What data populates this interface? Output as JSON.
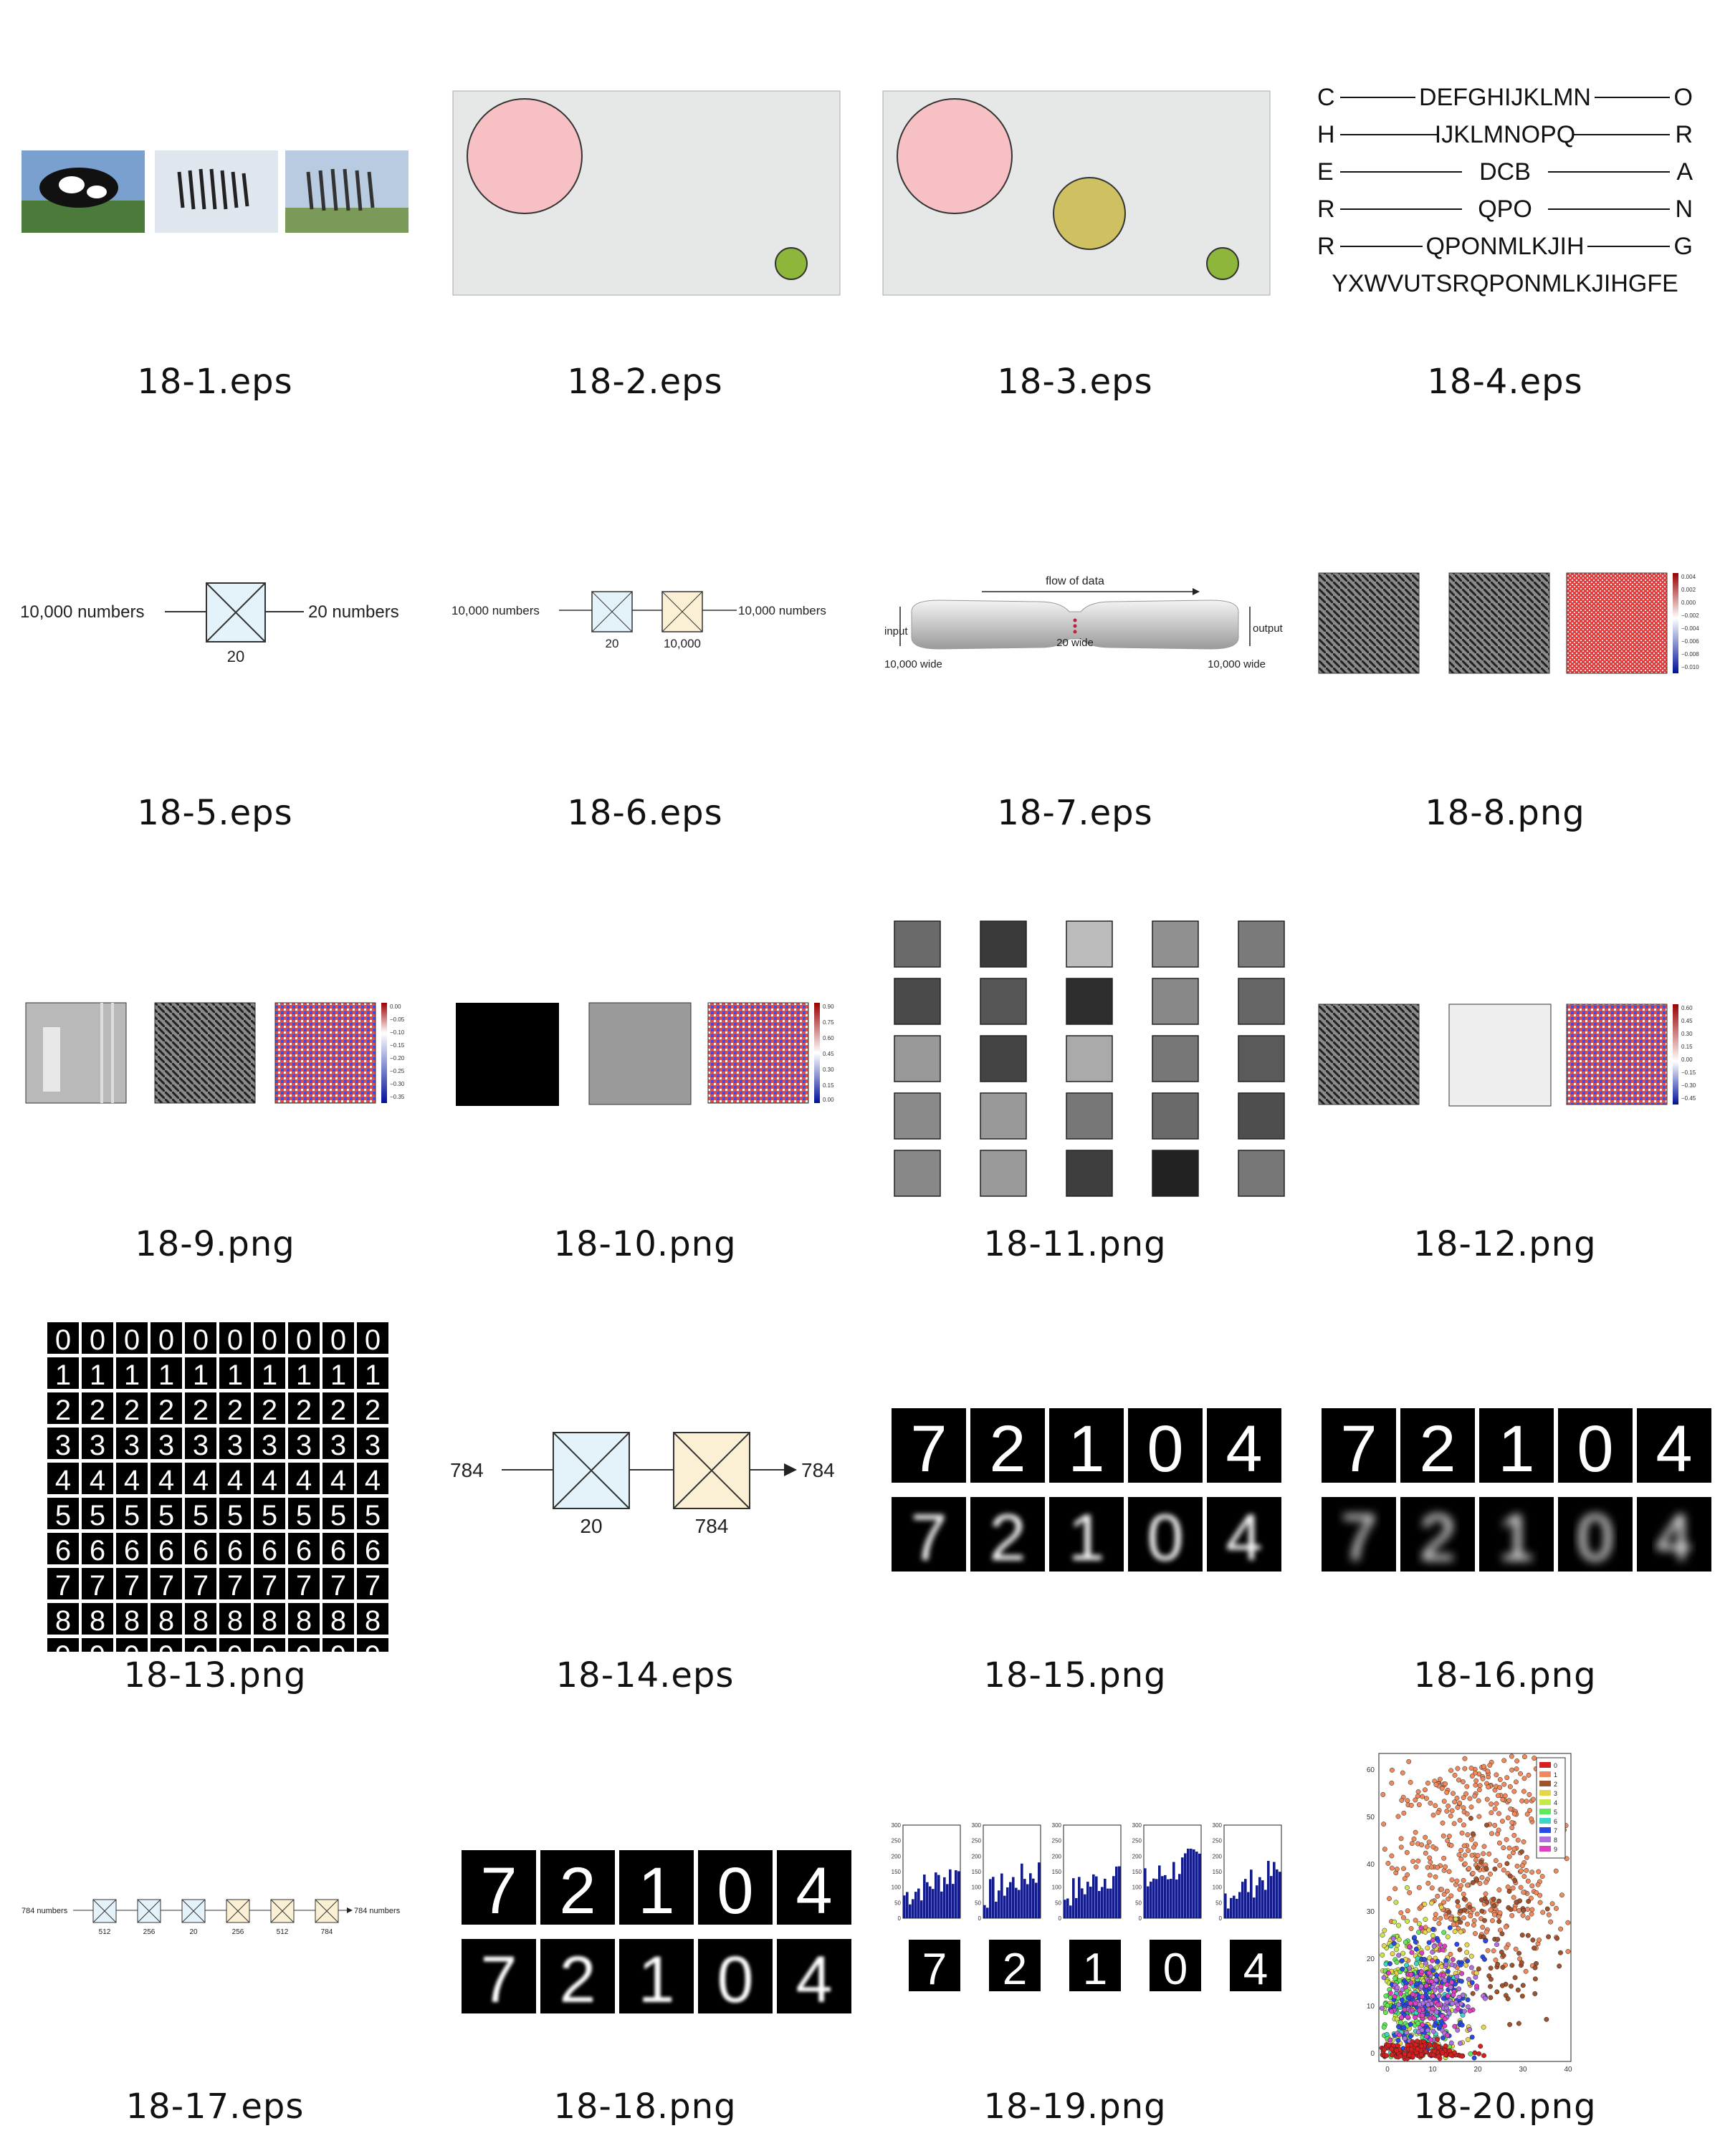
{
  "captions": [
    "18-1.eps",
    "18-2.eps",
    "18-3.eps",
    "18-4.eps",
    "18-5.eps",
    "18-6.eps",
    "18-7.eps",
    "18-8.png",
    "18-9.png",
    "18-10.png",
    "18-11.png",
    "18-12.png",
    "18-13.png",
    "18-14.eps",
    "18-15.png",
    "18-16.png",
    "18-17.eps",
    "18-18.png",
    "18-19.png",
    "18-20.png"
  ],
  "fig4": {
    "rows": [
      {
        "left": "C",
        "mid": "DEFGHIJKLMN",
        "right": "O"
      },
      {
        "left": "H",
        "mid": "IJKLMNOPQ",
        "right": "R"
      },
      {
        "left": "E",
        "mid": "DCB",
        "right": "A"
      },
      {
        "left": "R",
        "mid": "QPO",
        "right": "N"
      },
      {
        "left": "R",
        "mid": "QPONMLKJIH",
        "right": "G"
      }
    ],
    "last": "YXWVUTSRQPONMLKJIHGFE"
  },
  "fig5": {
    "left": "10,000 numbers",
    "right": "20 numbers",
    "box": "20"
  },
  "fig6": {
    "left": "10,000 numbers",
    "right": "10,000 numbers",
    "box1": "20",
    "box2": "10,000"
  },
  "fig7": {
    "flow": "flow of data",
    "input": "input",
    "output": "output",
    "mid": "20 wide",
    "bl": "10,000 wide",
    "br": "10,000 wide"
  },
  "colorbars": {
    "fig8": [
      "0.004",
      "0.002",
      "0.000",
      "−0.002",
      "−0.004",
      "−0.006",
      "−0.008",
      "−0.010"
    ],
    "fig9": [
      "0.00",
      "−0.05",
      "−0.10",
      "−0.15",
      "−0.20",
      "−0.25",
      "−0.30",
      "−0.35"
    ],
    "fig10": [
      "0.90",
      "0.75",
      "0.60",
      "0.45",
      "0.30",
      "0.15",
      "0.00"
    ],
    "fig12": [
      "0.60",
      "0.45",
      "0.30",
      "0.15",
      "0.00",
      "−0.15",
      "−0.30",
      "−0.45"
    ]
  },
  "fig14": {
    "left": "784",
    "right": "784",
    "box1": "20",
    "box2": "784"
  },
  "fig17": {
    "left": "784 numbers",
    "right": "784 numbers",
    "boxes": [
      "512",
      "256",
      "20",
      "256",
      "512",
      "784"
    ]
  },
  "digits": [
    "7",
    "2",
    "1",
    "0",
    "4"
  ],
  "fig19": {
    "ticks": [
      "300",
      "250",
      "200",
      "150",
      "100",
      "50",
      "0"
    ]
  },
  "fig20": {
    "legend": [
      "0",
      "1",
      "2",
      "3",
      "4",
      "5",
      "6",
      "7",
      "8",
      "9"
    ],
    "colors": [
      "#d62020",
      "#f08a5d",
      "#a0522d",
      "#e8d64a",
      "#c8e84a",
      "#5ee85a",
      "#3ad6c8",
      "#2a4ae8",
      "#b070e0",
      "#e040c0"
    ],
    "yticks": [
      "60",
      "50",
      "40",
      "30",
      "20",
      "10",
      "0"
    ],
    "xticks": [
      "0",
      "10",
      "20",
      "30",
      "40"
    ]
  }
}
